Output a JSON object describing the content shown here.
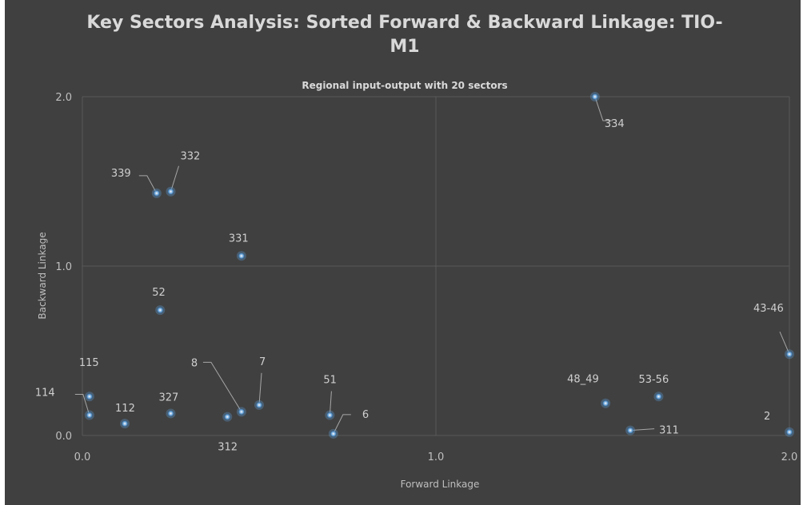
{
  "chart_data": {
    "type": "scatter",
    "title_lines": [
      "Key Sectors Analysis: Sorted Forward & Backward Linkage: TIO-",
      "M1"
    ],
    "subtitle": "Regional input-output  with 20 sectors",
    "xlabel": "Forward Linkage",
    "ylabel": "Backward Linkage",
    "xlim": [
      0,
      2
    ],
    "ylim": [
      0,
      2
    ],
    "xticks": [
      "0.0",
      "1.0",
      "2.0"
    ],
    "yticks": [
      "0.0",
      "1.0",
      "2.0"
    ],
    "grid": true,
    "colors": {
      "background": "#404040",
      "gridline": "#595959",
      "point": "#5b9bd5",
      "text": "#d9d9d9"
    },
    "points": [
      {
        "label": "334",
        "x": 1.45,
        "y": 2.0
      },
      {
        "label": "339",
        "x": 0.21,
        "y": 1.43
      },
      {
        "label": "332",
        "x": 0.25,
        "y": 1.44
      },
      {
        "label": "331",
        "x": 0.45,
        "y": 1.06
      },
      {
        "label": "52",
        "x": 0.22,
        "y": 0.74
      },
      {
        "label": "43-46",
        "x": 2.0,
        "y": 0.48
      },
      {
        "label": "115",
        "x": 0.02,
        "y": 0.23
      },
      {
        "label": "114",
        "x": 0.02,
        "y": 0.12
      },
      {
        "label": "112",
        "x": 0.12,
        "y": 0.07
      },
      {
        "label": "327",
        "x": 0.25,
        "y": 0.13
      },
      {
        "label": "312",
        "x": 0.41,
        "y": 0.11
      },
      {
        "label": "8",
        "x": 0.45,
        "y": 0.14
      },
      {
        "label": "7",
        "x": 0.5,
        "y": 0.18
      },
      {
        "label": "51",
        "x": 0.7,
        "y": 0.12
      },
      {
        "label": "6",
        "x": 0.71,
        "y": 0.01
      },
      {
        "label": "48_49",
        "x": 1.48,
        "y": 0.19
      },
      {
        "label": "311",
        "x": 1.55,
        "y": 0.03
      },
      {
        "label": "53-56",
        "x": 1.63,
        "y": 0.23
      },
      {
        "label": "2",
        "x": 2.0,
        "y": 0.02
      }
    ]
  }
}
